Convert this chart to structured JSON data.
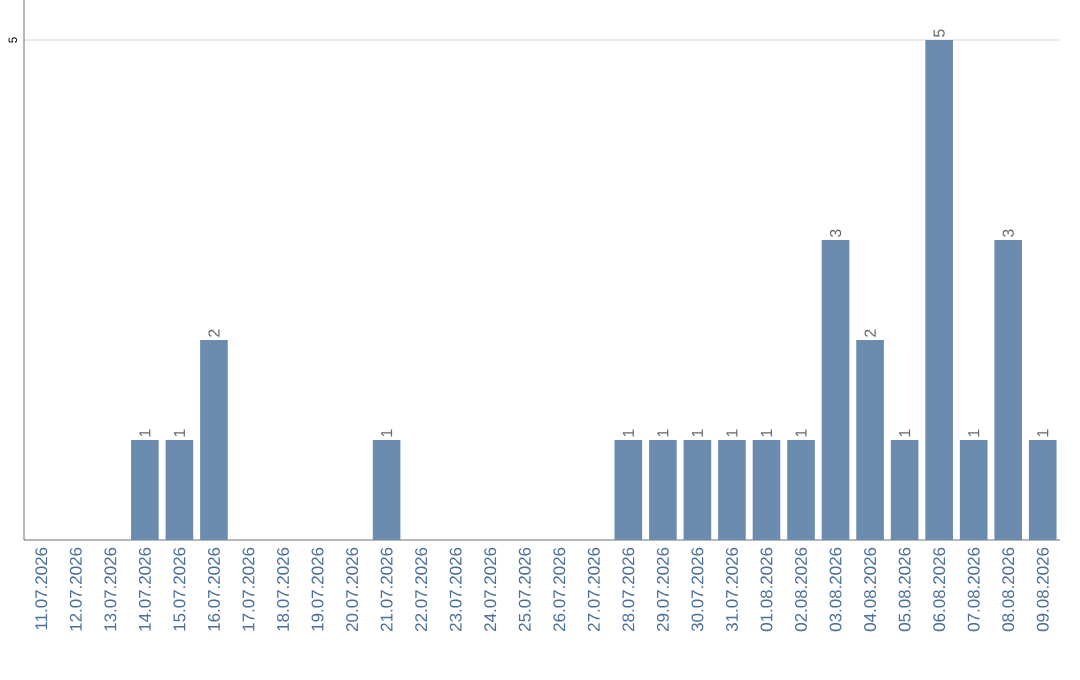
{
  "chart_data": {
    "type": "bar",
    "categories": [
      "11.07.2026",
      "12.07.2026",
      "13.07.2026",
      "14.07.2026",
      "15.07.2026",
      "16.07.2026",
      "17.07.2026",
      "18.07.2026",
      "19.07.2026",
      "20.07.2026",
      "21.07.2026",
      "22.07.2026",
      "23.07.2026",
      "24.07.2026",
      "25.07.2026",
      "26.07.2026",
      "27.07.2026",
      "28.07.2026",
      "29.07.2026",
      "30.07.2026",
      "31.07.2026",
      "01.08.2026",
      "02.08.2026",
      "03.08.2026",
      "04.08.2026",
      "05.08.2026",
      "06.08.2026",
      "07.08.2026",
      "08.08.2026",
      "09.08.2026"
    ],
    "values": [
      0,
      0,
      0,
      1,
      1,
      2,
      0,
      0,
      0,
      0,
      1,
      0,
      0,
      0,
      0,
      0,
      0,
      1,
      1,
      1,
      1,
      1,
      1,
      3,
      2,
      1,
      5,
      1,
      3,
      1
    ],
    "value_labels": [
      null,
      null,
      null,
      "1",
      "1",
      "2",
      null,
      null,
      null,
      null,
      "1",
      null,
      null,
      null,
      null,
      null,
      null,
      "1",
      "1",
      "1",
      "1",
      "1",
      "1",
      "3",
      "2",
      "1",
      "5",
      "1",
      "3",
      "1"
    ],
    "color": "#6b8cae",
    "ylim": [
      0,
      5.4
    ],
    "yticks": [
      5
    ],
    "grid": "y"
  }
}
